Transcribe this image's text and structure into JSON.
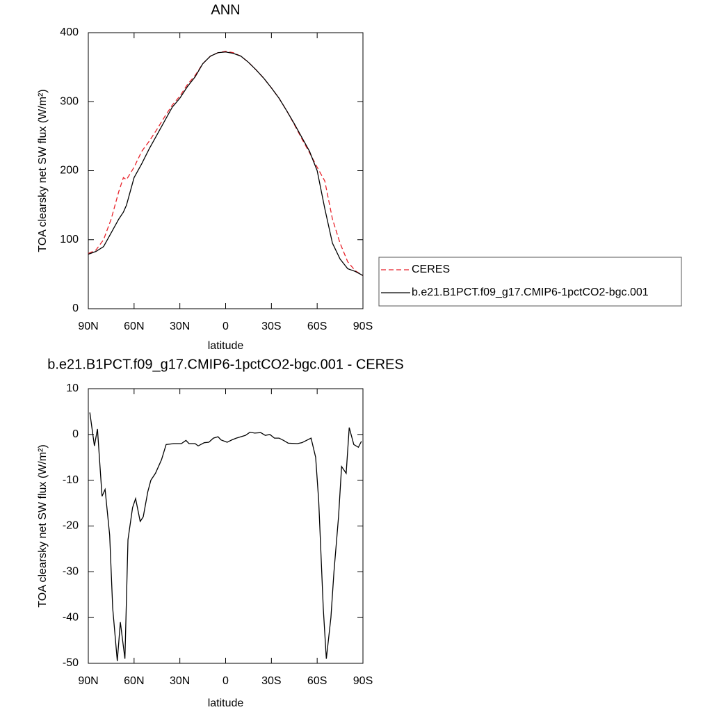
{
  "chart_data": [
    {
      "type": "line",
      "title": "ANN",
      "xlabel": "latitude",
      "ylabel": "TOA clearsky net SW flux (W/m²)",
      "x": [
        90,
        85,
        80,
        75,
        70,
        67,
        65,
        60,
        55,
        50,
        45,
        40,
        35,
        30,
        25,
        20,
        15,
        10,
        5,
        0,
        -5,
        -10,
        -15,
        -20,
        -25,
        -30,
        -35,
        -40,
        -45,
        -50,
        -55,
        -60,
        -65,
        -70,
        -75,
        -80,
        -85,
        -90
      ],
      "series": [
        {
          "name": "CERES",
          "color": "#e8222a",
          "style": "dashed",
          "values": [
            80,
            85,
            100,
            130,
            170,
            190,
            187,
            205,
            228,
            243,
            260,
            278,
            295,
            308,
            325,
            338,
            355,
            366,
            371,
            373,
            371,
            366,
            357,
            346,
            334,
            320,
            305,
            287,
            267,
            246,
            226,
            205,
            185,
            130,
            95,
            68,
            55,
            48
          ]
        },
        {
          "name": "b.e21.B1PCT.f09_g17.CMIP6-1pctCO2-bgc.001",
          "color": "#000000",
          "style": "solid",
          "values": [
            79,
            83,
            90,
            110,
            130,
            140,
            150,
            190,
            210,
            232,
            252,
            272,
            292,
            305,
            322,
            336,
            355,
            366,
            371,
            372,
            370,
            366,
            357,
            346,
            334,
            320,
            305,
            287,
            268,
            248,
            228,
            200,
            145,
            95,
            72,
            58,
            54,
            48
          ]
        }
      ],
      "xlim": [
        90,
        -90
      ],
      "xticks": [
        {
          "value": 90,
          "label": "90N"
        },
        {
          "value": 60,
          "label": "60N"
        },
        {
          "value": 30,
          "label": "30N"
        },
        0,
        {
          "value": -30,
          "label": "30S"
        },
        {
          "value": -60,
          "label": "60S"
        },
        {
          "value": -90,
          "label": "90S"
        }
      ],
      "ylim": [
        0,
        400
      ],
      "yticks": [
        0,
        100,
        200,
        300,
        400
      ],
      "legend": "right"
    },
    {
      "type": "line",
      "title": "b.e21.B1PCT.f09_g17.CMIP6-1pctCO2-bgc.001 - CERES",
      "xlabel": "latitude",
      "ylabel": "TOA clearsky net SW flux (W/m²)",
      "x": [
        89,
        86,
        84,
        81,
        79,
        76,
        74,
        71,
        69,
        66,
        64,
        61,
        59,
        56,
        54,
        51,
        49,
        46,
        42,
        39,
        34,
        29,
        26,
        24,
        20,
        18,
        14,
        11,
        8,
        5,
        3,
        -1,
        -4,
        -7,
        -10,
        -13,
        -16,
        -19,
        -23,
        -26,
        -29,
        -32,
        -35,
        -38,
        -41,
        -47,
        -50,
        -56,
        -59,
        -61,
        -64,
        -66,
        -69,
        -71,
        -74,
        -76,
        -79,
        -81,
        -84,
        -87,
        -89
      ],
      "values": [
        4.8,
        -2.5,
        1.2,
        -13.5,
        -12,
        -22,
        -38,
        -49.5,
        -41,
        -49,
        -23,
        -16,
        -14,
        -19,
        -18,
        -12.5,
        -10,
        -8.5,
        -5.5,
        -2.2,
        -2,
        -2,
        -1.3,
        -2,
        -2,
        -2.5,
        -1.8,
        -1.7,
        -0.8,
        -0.5,
        -1.2,
        -1.7,
        -1.2,
        -0.8,
        -0.5,
        -0.2,
        0.5,
        0.3,
        0.4,
        -0.2,
        0,
        -0.8,
        -0.8,
        -1.3,
        -1.9,
        -2,
        -1.8,
        -0.8,
        -5,
        -14.5,
        -38,
        -49,
        -40,
        -30,
        -18,
        -7,
        -8.5,
        1.5,
        -2.2,
        -2.8,
        -1.5
      ],
      "color": "#000000",
      "xlim": [
        90,
        -90
      ],
      "xticks": [
        {
          "value": 90,
          "label": "90N"
        },
        {
          "value": 60,
          "label": "60N"
        },
        {
          "value": 30,
          "label": "30N"
        },
        0,
        {
          "value": -30,
          "label": "30S"
        },
        {
          "value": -60,
          "label": "60S"
        },
        {
          "value": -90,
          "label": "90S"
        }
      ],
      "ylim": [
        -50,
        10
      ],
      "yticks": [
        -50,
        -40,
        -30,
        -20,
        -10,
        0,
        10
      ]
    }
  ]
}
